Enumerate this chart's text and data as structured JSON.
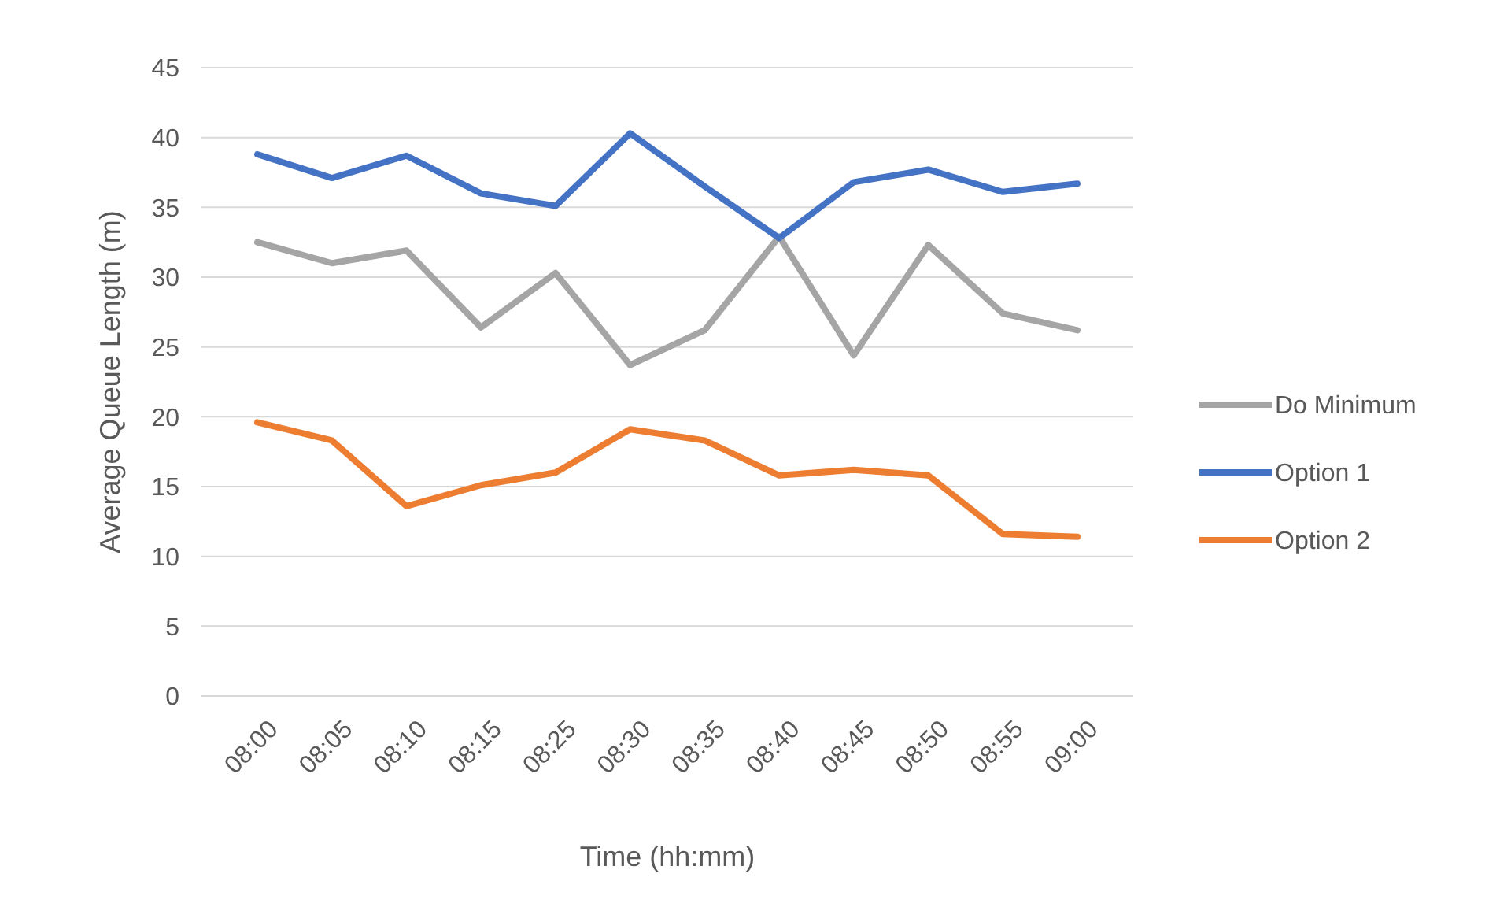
{
  "chart_data": {
    "type": "line",
    "xlabel": "Time (hh:mm)",
    "ylabel": "Average Queue Length (m)",
    "categories": [
      "08:00",
      "08:05",
      "08:10",
      "08:15",
      "08:25",
      "08:30",
      "08:35",
      "08:40",
      "08:45",
      "08:50",
      "08:55",
      "09:00"
    ],
    "series": [
      {
        "name": "Do Minimum",
        "color": "#a5a5a5",
        "values": [
          32.5,
          31.0,
          31.9,
          26.4,
          30.3,
          23.7,
          26.2,
          32.9,
          24.4,
          32.3,
          27.4,
          26.2
        ]
      },
      {
        "name": "Option 1",
        "color": "#4472c4",
        "values": [
          38.8,
          37.1,
          38.7,
          36.0,
          35.1,
          40.3,
          36.5,
          32.8,
          36.8,
          37.7,
          36.1,
          36.7
        ]
      },
      {
        "name": "Option 2",
        "color": "#ed7d31",
        "values": [
          19.6,
          18.3,
          13.6,
          15.1,
          16.0,
          19.1,
          18.3,
          15.8,
          16.2,
          15.8,
          11.6,
          11.4
        ]
      }
    ],
    "ylim": [
      0,
      45
    ],
    "yticks": [
      0,
      5,
      10,
      15,
      20,
      25,
      30,
      35,
      40,
      45
    ],
    "grid": "y",
    "legend": "right",
    "marker": "none",
    "line_style": "solid"
  }
}
